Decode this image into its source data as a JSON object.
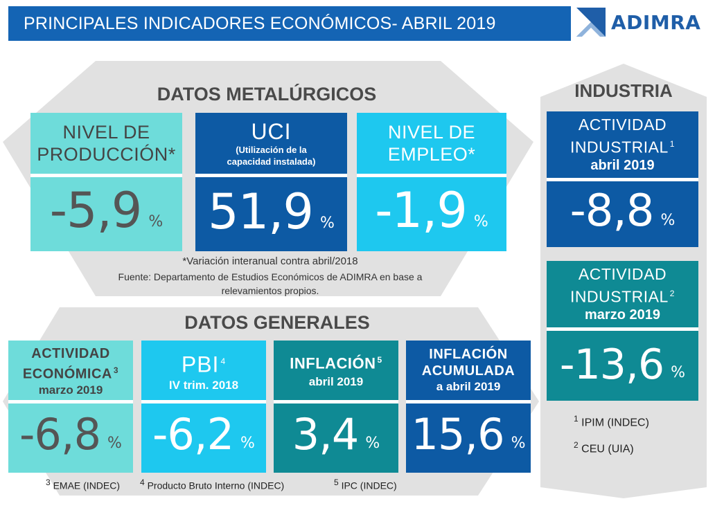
{
  "header": {
    "title": "PRINCIPALES INDICADORES ECONÓMICOS- ABRIL 2019"
  },
  "logo": {
    "text": "ADIMRA",
    "icon": "adimra-logo-icon"
  },
  "metalurgicos": {
    "title": "DATOS METALÚRGICOS",
    "tiles": [
      {
        "title_lines": [
          "NIVEL DE",
          "PRODUCCIÓN*"
        ],
        "subtitle_lines": [],
        "value": "-5,9",
        "unit": "%"
      },
      {
        "title_lines": [
          "UCI"
        ],
        "subtitle_lines": [
          "(Utilización de la",
          "capacidad instalada)"
        ],
        "value": "51,9",
        "unit": "%"
      },
      {
        "title_lines": [
          "NIVEL DE",
          "EMPLEO*"
        ],
        "subtitle_lines": [],
        "value": "-1,9",
        "unit": "%"
      }
    ],
    "note": "*Variación interanual contra abril/2018",
    "source_lines": [
      "Fuente: Departamento de Estudios Económicos de ADIMRA en base a",
      "relevamientos propios."
    ]
  },
  "generales": {
    "title": "DATOS GENERALES",
    "tiles": [
      {
        "title_lines": [
          "ACTIVIDAD",
          "ECONÓMICA"
        ],
        "sup": "3",
        "subtitle": "marzo 2019",
        "value": "-6,8",
        "unit": "%"
      },
      {
        "title_lines": [
          "PBI"
        ],
        "sup": "4",
        "subtitle": "IV trim. 2018",
        "value": "-6,2",
        "unit": "%"
      },
      {
        "title_lines": [
          "INFLACIÓN"
        ],
        "sup": "5",
        "subtitle": "abril 2019",
        "value": "3,4",
        "unit": "%"
      },
      {
        "title_lines": [
          "INFLACIÓN",
          "ACUMULADA"
        ],
        "sup": "",
        "subtitle": "a abril 2019",
        "value": "15,6",
        "unit": "%"
      }
    ],
    "footnotes": [
      {
        "num": "3",
        "text": "EMAE (INDEC)"
      },
      {
        "num": "4",
        "text": "Producto Bruto Interno (INDEC)"
      },
      {
        "num": "5",
        "text": "IPC (INDEC)"
      }
    ]
  },
  "industria": {
    "title": "INDUSTRIA",
    "tiles": [
      {
        "title_lines": [
          "ACTIVIDAD",
          "INDUSTRIAL"
        ],
        "sup": "1",
        "subtitle": "abril 2019",
        "value": "-8,8",
        "unit": "%"
      },
      {
        "title_lines": [
          "ACTIVIDAD",
          "INDUSTRIAL"
        ],
        "sup": "2",
        "subtitle": "marzo 2019",
        "value": "-13,6",
        "unit": "%"
      }
    ],
    "footnotes": [
      {
        "num": "1",
        "text": "IPIM (INDEC)"
      },
      {
        "num": "2",
        "text": "CEU (UIA)"
      }
    ]
  },
  "colors": {
    "cyan": "#6edcda",
    "navy": "#0d5aa4",
    "sky": "#1ec8ef",
    "teal": "#0f8a94",
    "header": "#1464b4",
    "shape": "#e1e1e1"
  }
}
